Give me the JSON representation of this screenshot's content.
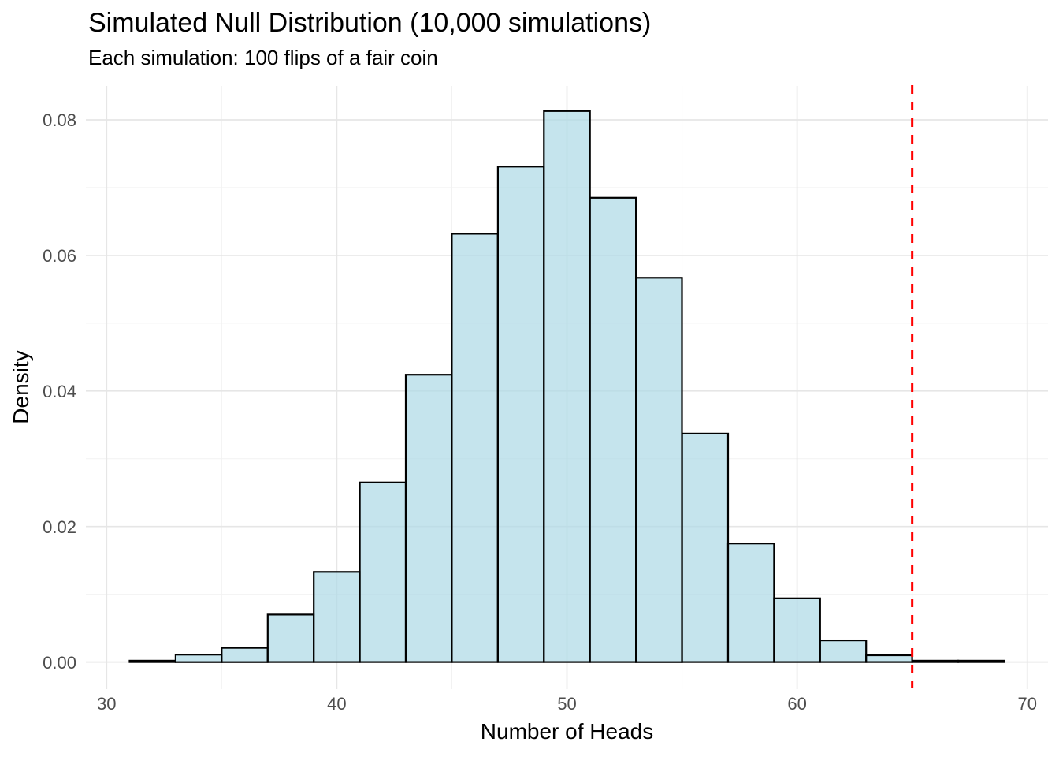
{
  "title": "Simulated Null Distribution (10,000 simulations)",
  "subtitle": "Each simulation: 100 flips of a fair coin",
  "colors": {
    "background": "#FFFFFF",
    "bar_fill": "#ADD8E6",
    "bar_fill_opacity": 0.7,
    "bar_stroke": "#000000",
    "reference_line": "#FF0000",
    "grid_major": "#E6E6E6",
    "grid_minor": "#F2F2F2",
    "tick_label": "#4D4D4D",
    "text": "#000000"
  },
  "chart_data": {
    "type": "bar",
    "chart_kind": "histogram",
    "title": "Simulated Null Distribution (10,000 simulations)",
    "subtitle": "Each simulation: 100 flips of a fair coin",
    "xlabel": "Number of Heads",
    "ylabel": "Density",
    "bin_width": 2,
    "bins": [
      {
        "start": 31,
        "end": 33,
        "density": 0.0002
      },
      {
        "start": 33,
        "end": 35,
        "density": 0.0011
      },
      {
        "start": 35,
        "end": 37,
        "density": 0.0021
      },
      {
        "start": 37,
        "end": 39,
        "density": 0.007
      },
      {
        "start": 39,
        "end": 41,
        "density": 0.0133
      },
      {
        "start": 41,
        "end": 43,
        "density": 0.0265
      },
      {
        "start": 43,
        "end": 45,
        "density": 0.0424
      },
      {
        "start": 45,
        "end": 47,
        "density": 0.0632
      },
      {
        "start": 47,
        "end": 49,
        "density": 0.0731
      },
      {
        "start": 49,
        "end": 51,
        "density": 0.0813
      },
      {
        "start": 51,
        "end": 53,
        "density": 0.0685
      },
      {
        "start": 53,
        "end": 55,
        "density": 0.0567
      },
      {
        "start": 55,
        "end": 57,
        "density": 0.0337
      },
      {
        "start": 57,
        "end": 59,
        "density": 0.0175
      },
      {
        "start": 59,
        "end": 61,
        "density": 0.0094
      },
      {
        "start": 61,
        "end": 63,
        "density": 0.0032
      },
      {
        "start": 63,
        "end": 65,
        "density": 0.001
      },
      {
        "start": 65,
        "end": 67,
        "density": 0.0002
      },
      {
        "start": 67,
        "end": 69,
        "density": 0.0002
      }
    ],
    "x_major_ticks": [
      30,
      40,
      50,
      60,
      70
    ],
    "x_tick_labels": [
      "30",
      "40",
      "50",
      "60",
      "70"
    ],
    "x_minor_gridlines": [
      35,
      45,
      55,
      65
    ],
    "y_major_ticks": [
      0,
      0.02,
      0.04,
      0.06,
      0.08
    ],
    "y_tick_labels": [
      "0.00",
      "0.02",
      "0.04",
      "0.06",
      "0.08"
    ],
    "y_minor_gridlines": [
      0.01,
      0.03,
      0.05,
      0.07
    ],
    "xlim": [
      29.1,
      70.9
    ],
    "ylim": [
      -0.004,
      0.085
    ],
    "grid": "major+minor",
    "legend": false,
    "reference_line": {
      "x": 65,
      "orientation": "vertical",
      "style": "dashed",
      "color": "#FF0000"
    }
  }
}
